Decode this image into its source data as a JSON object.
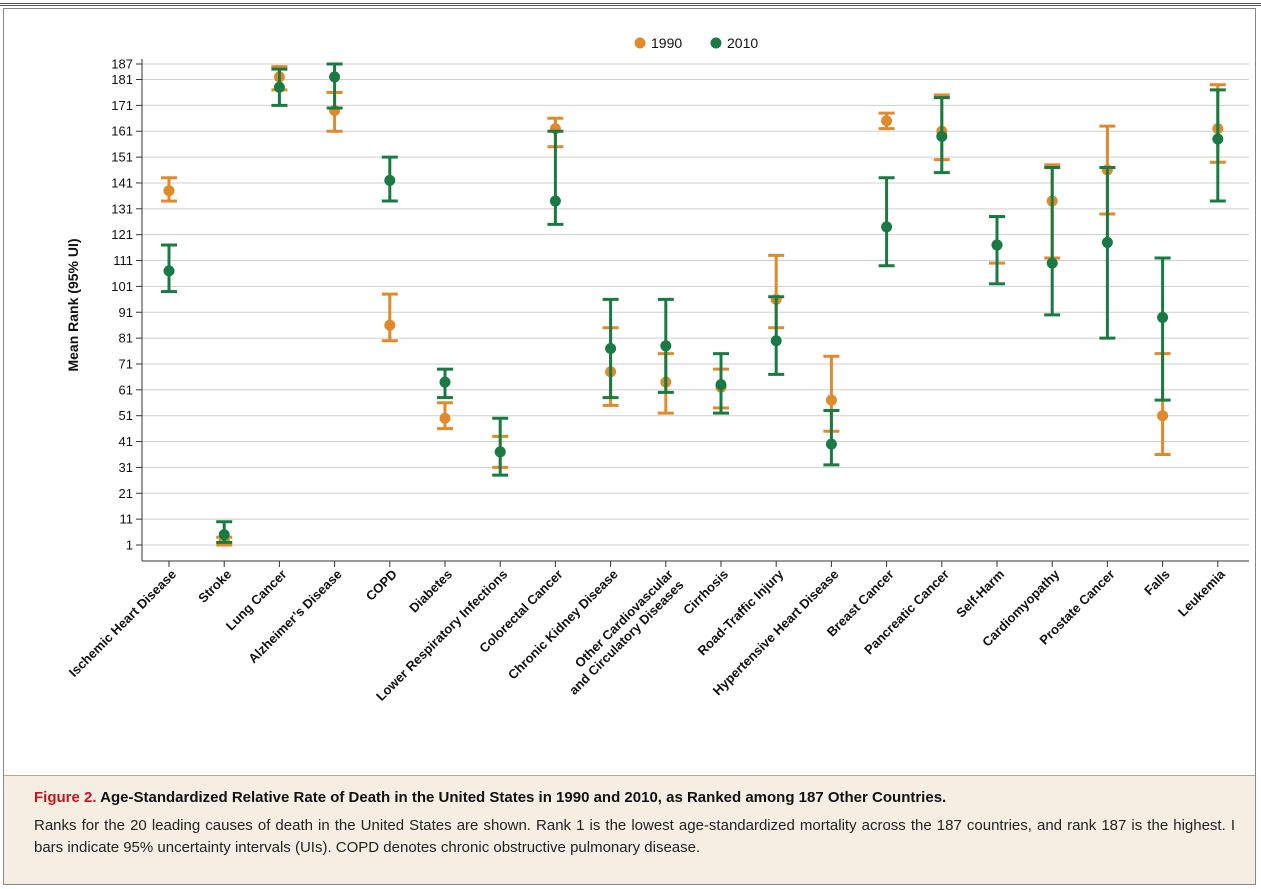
{
  "chart_data": {
    "type": "scatter",
    "title": "",
    "ylabel": "Mean Rank (95% UI)",
    "xlabel": "",
    "ylim": [
      1,
      187
    ],
    "yticks": [
      1,
      11,
      21,
      31,
      41,
      51,
      61,
      71,
      81,
      91,
      101,
      111,
      121,
      131,
      141,
      151,
      161,
      171,
      181,
      187
    ],
    "grid": true,
    "legend": "top-center",
    "categories": [
      [
        "Ischemic Heart Disease"
      ],
      [
        "Stroke"
      ],
      [
        "Lung Cancer"
      ],
      [
        "Alzheimer’s Disease"
      ],
      [
        "COPD"
      ],
      [
        "Diabetes"
      ],
      [
        "Lower Respiratory Infections"
      ],
      [
        "Colorectal Cancer"
      ],
      [
        "Chronic Kidney Disease"
      ],
      [
        "Other Cardiovascular",
        "and Circulatory Diseases"
      ],
      [
        "Cirrhosis"
      ],
      [
        "Road-Traffic Injury"
      ],
      [
        "Hypertensive Heart Disease"
      ],
      [
        "Breast Cancer"
      ],
      [
        "Pancreatic Cancer"
      ],
      [
        "Self-Harm"
      ],
      [
        "Cardiomyopathy"
      ],
      [
        "Prostate Cancer"
      ],
      [
        "Falls"
      ],
      [
        "Leukemia"
      ]
    ],
    "series": [
      {
        "name": "1990",
        "color": "#e08a2c",
        "values": [
          138,
          3,
          182,
          169,
          86,
          50,
          37,
          162,
          68,
          64,
          62,
          96,
          57,
          165,
          161,
          117,
          134,
          146,
          51,
          162
        ],
        "lower": [
          134,
          1,
          177,
          161,
          80,
          46,
          31,
          155,
          55,
          52,
          54,
          85,
          45,
          162,
          150,
          110,
          112,
          129,
          36,
          149
        ],
        "upper": [
          143,
          4,
          186,
          176,
          98,
          56,
          43,
          166,
          85,
          75,
          69,
          113,
          74,
          168,
          175,
          128,
          148,
          163,
          75,
          179
        ]
      },
      {
        "name": "2010",
        "color": "#1a7a43",
        "values": [
          107,
          5,
          178,
          182,
          142,
          64,
          37,
          134,
          77,
          78,
          63,
          80,
          40,
          124,
          159,
          117,
          110,
          118,
          89,
          158
        ],
        "lower": [
          99,
          2,
          171,
          170,
          134,
          58,
          28,
          125,
          58,
          60,
          52,
          67,
          32,
          109,
          145,
          102,
          90,
          81,
          57,
          134
        ],
        "upper": [
          117,
          10,
          185,
          187,
          151,
          69,
          50,
          161,
          96,
          96,
          75,
          97,
          53,
          143,
          174,
          128,
          147,
          147,
          112,
          177
        ]
      }
    ]
  },
  "caption": {
    "label": "Figure 2.",
    "title": "Age-Standardized Relative Rate of Death in the United States in 1990 and 2010, as Ranked among 187 Other Countries.",
    "text": "Ranks for the 20 leading causes of death in the United States are shown. Rank 1 is the lowest age-standardized mortality across the 187 countries, and rank 187 is the highest. I bars indicate 95% uncertainty intervals (UIs). COPD denotes chronic obstructive pulmonary disease."
  }
}
